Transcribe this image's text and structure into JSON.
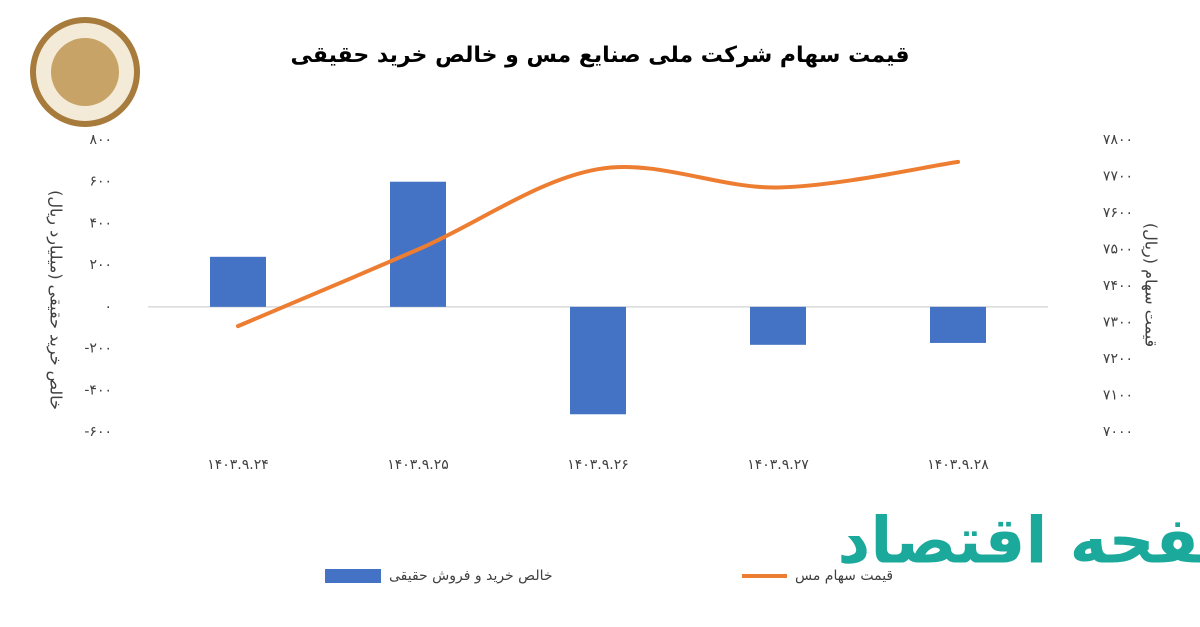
{
  "chart_data": {
    "type": "combo",
    "title": "قیمت سهام شرکت ملی صنایع مس و خالص خرید حقیقی",
    "y_label": "خالص خرید حقیقی (میلیارد ریال)",
    "y2_label": "قیمت سهام (ریال)",
    "categories": [
      "۱۴۰۳.۹.۲۴",
      "۱۴۰۳.۹.۲۵",
      "۱۴۰۳.۹.۲۶",
      "۱۴۰۳.۹.۲۷",
      "۱۴۰۳.۹.۲۸"
    ],
    "series": [
      {
        "name": "خالص خرید و فروش حقیقی",
        "type": "bar",
        "color": "#4472c4",
        "values": [
          240,
          600,
          -515,
          -182,
          -173
        ]
      },
      {
        "name": "قیمت سهام مس",
        "type": "line",
        "axis": "y2",
        "color": "#ed7d31",
        "values": [
          7290,
          7500,
          7720,
          7670,
          7740
        ]
      }
    ],
    "ylim": [
      -600,
      800
    ],
    "yticks": [
      {
        "value": -600,
        "label": "-۶۰۰"
      },
      {
        "value": -400,
        "label": "-۴۰۰"
      },
      {
        "value": -200,
        "label": "-۲۰۰"
      },
      {
        "value": 0,
        "label": "۰"
      },
      {
        "value": 200,
        "label": "۲۰۰"
      },
      {
        "value": 400,
        "label": "۴۰۰"
      },
      {
        "value": 600,
        "label": "۶۰۰"
      },
      {
        "value": 800,
        "label": "۸۰۰"
      }
    ],
    "y2lim": [
      7000,
      7800
    ],
    "y2ticks": [
      {
        "value": 7000,
        "label": "۷۰۰۰"
      },
      {
        "value": 7100,
        "label": "۷۱۰۰"
      },
      {
        "value": 7200,
        "label": "۷۲۰۰"
      },
      {
        "value": 7300,
        "label": "۷۳۰۰"
      },
      {
        "value": 7400,
        "label": "۷۴۰۰"
      },
      {
        "value": 7500,
        "label": "۷۵۰۰"
      },
      {
        "value": 7600,
        "label": "۷۶۰۰"
      },
      {
        "value": 7700,
        "label": "۷۷۰۰"
      },
      {
        "value": 7800,
        "label": "۷۸۰۰"
      }
    ],
    "legend": "bottom"
  },
  "watermark": "صفحه اقتصاد"
}
